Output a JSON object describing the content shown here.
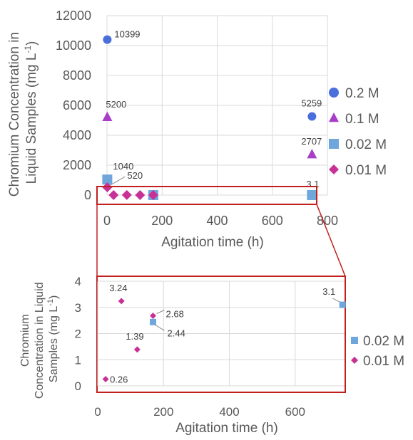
{
  "chart_data": [
    {
      "type": "scatter",
      "xlabel": "Agitation time (h)",
      "ylabel": "Chromium Concentration in Liquid Samples (mg L-1)",
      "xlim": [
        0,
        800
      ],
      "ylim": [
        0,
        12000
      ],
      "x_ticks": [
        "0",
        "200",
        "400",
        "600",
        "800"
      ],
      "y_ticks": [
        "0",
        "2000",
        "4000",
        "6000",
        "8000",
        "10000",
        "12000"
      ],
      "legend_position": "right",
      "grid": true,
      "series": [
        {
          "name": "0.2 M",
          "color": "#4a6fdc",
          "marker": "circle",
          "points": [
            {
              "x": 1,
              "y": 10399,
              "label": "10399"
            },
            {
              "x": 744,
              "y": 5259,
              "label": "5259"
            }
          ]
        },
        {
          "name": "0.1 M",
          "color": "#a83ec8",
          "marker": "triangle",
          "points": [
            {
              "x": 1,
              "y": 5200,
              "label": "5200"
            },
            {
              "x": 744,
              "y": 2707,
              "label": "2707"
            }
          ]
        },
        {
          "name": "0.02 M",
          "color": "#6fa6dc",
          "marker": "square",
          "points": [
            {
              "x": 1,
              "y": 1040,
              "label": "1040"
            },
            {
              "x": 168,
              "y": 2.44,
              "label": ""
            },
            {
              "x": 744,
              "y": 3.1,
              "label": "3.1"
            }
          ]
        },
        {
          "name": "0.01 M",
          "color": "#c83296",
          "marker": "diamond",
          "points": [
            {
              "x": 1,
              "y": 520,
              "label": "520"
            },
            {
              "x": 24,
              "y": 0.26,
              "label": ""
            },
            {
              "x": 72,
              "y": 3.24,
              "label": ""
            },
            {
              "x": 120,
              "y": 1.39,
              "label": ""
            },
            {
              "x": 168,
              "y": 2.68,
              "label": ""
            }
          ]
        }
      ]
    },
    {
      "type": "scatter",
      "xlabel": "Agitation time (h)",
      "ylabel": "Chromium Concentration in Liquid Samples (mg L-1)",
      "xlim": [
        0,
        750
      ],
      "ylim": [
        0,
        4
      ],
      "x_ticks": [
        "0",
        "200",
        "400",
        "600"
      ],
      "y_ticks": [
        "0",
        "1",
        "2",
        "3",
        "4"
      ],
      "legend_position": "right",
      "grid": true,
      "series": [
        {
          "name": "0.02 M",
          "color": "#6fa6dc",
          "marker": "square",
          "points": [
            {
              "x": 168,
              "y": 2.44,
              "label": "2.44"
            },
            {
              "x": 744,
              "y": 3.1,
              "label": "3.1"
            }
          ]
        },
        {
          "name": "0.01 M",
          "color": "#c83296",
          "marker": "diamond",
          "points": [
            {
              "x": 24,
              "y": 0.26,
              "label": "0.26"
            },
            {
              "x": 72,
              "y": 3.24,
              "label": "3.24"
            },
            {
              "x": 120,
              "y": 1.39,
              "label": "1.39"
            },
            {
              "x": 168,
              "y": 2.68,
              "label": "2.68"
            }
          ]
        }
      ]
    }
  ],
  "text": {
    "main_ylabel_line1": "Chromium Concentration in",
    "main_ylabel_line2": "Liquid Samples (mg L",
    "main_ylabel_sup": "-1",
    "main_ylabel_end": ")",
    "inset_ylabel_line1": "Chromium",
    "inset_ylabel_line2": "Concentration in Liquid",
    "inset_ylabel_line3": "Samples (mg L",
    "inset_ylabel_sup": "-1",
    "inset_ylabel_end": ")"
  },
  "highlight_color": "#c0201e"
}
